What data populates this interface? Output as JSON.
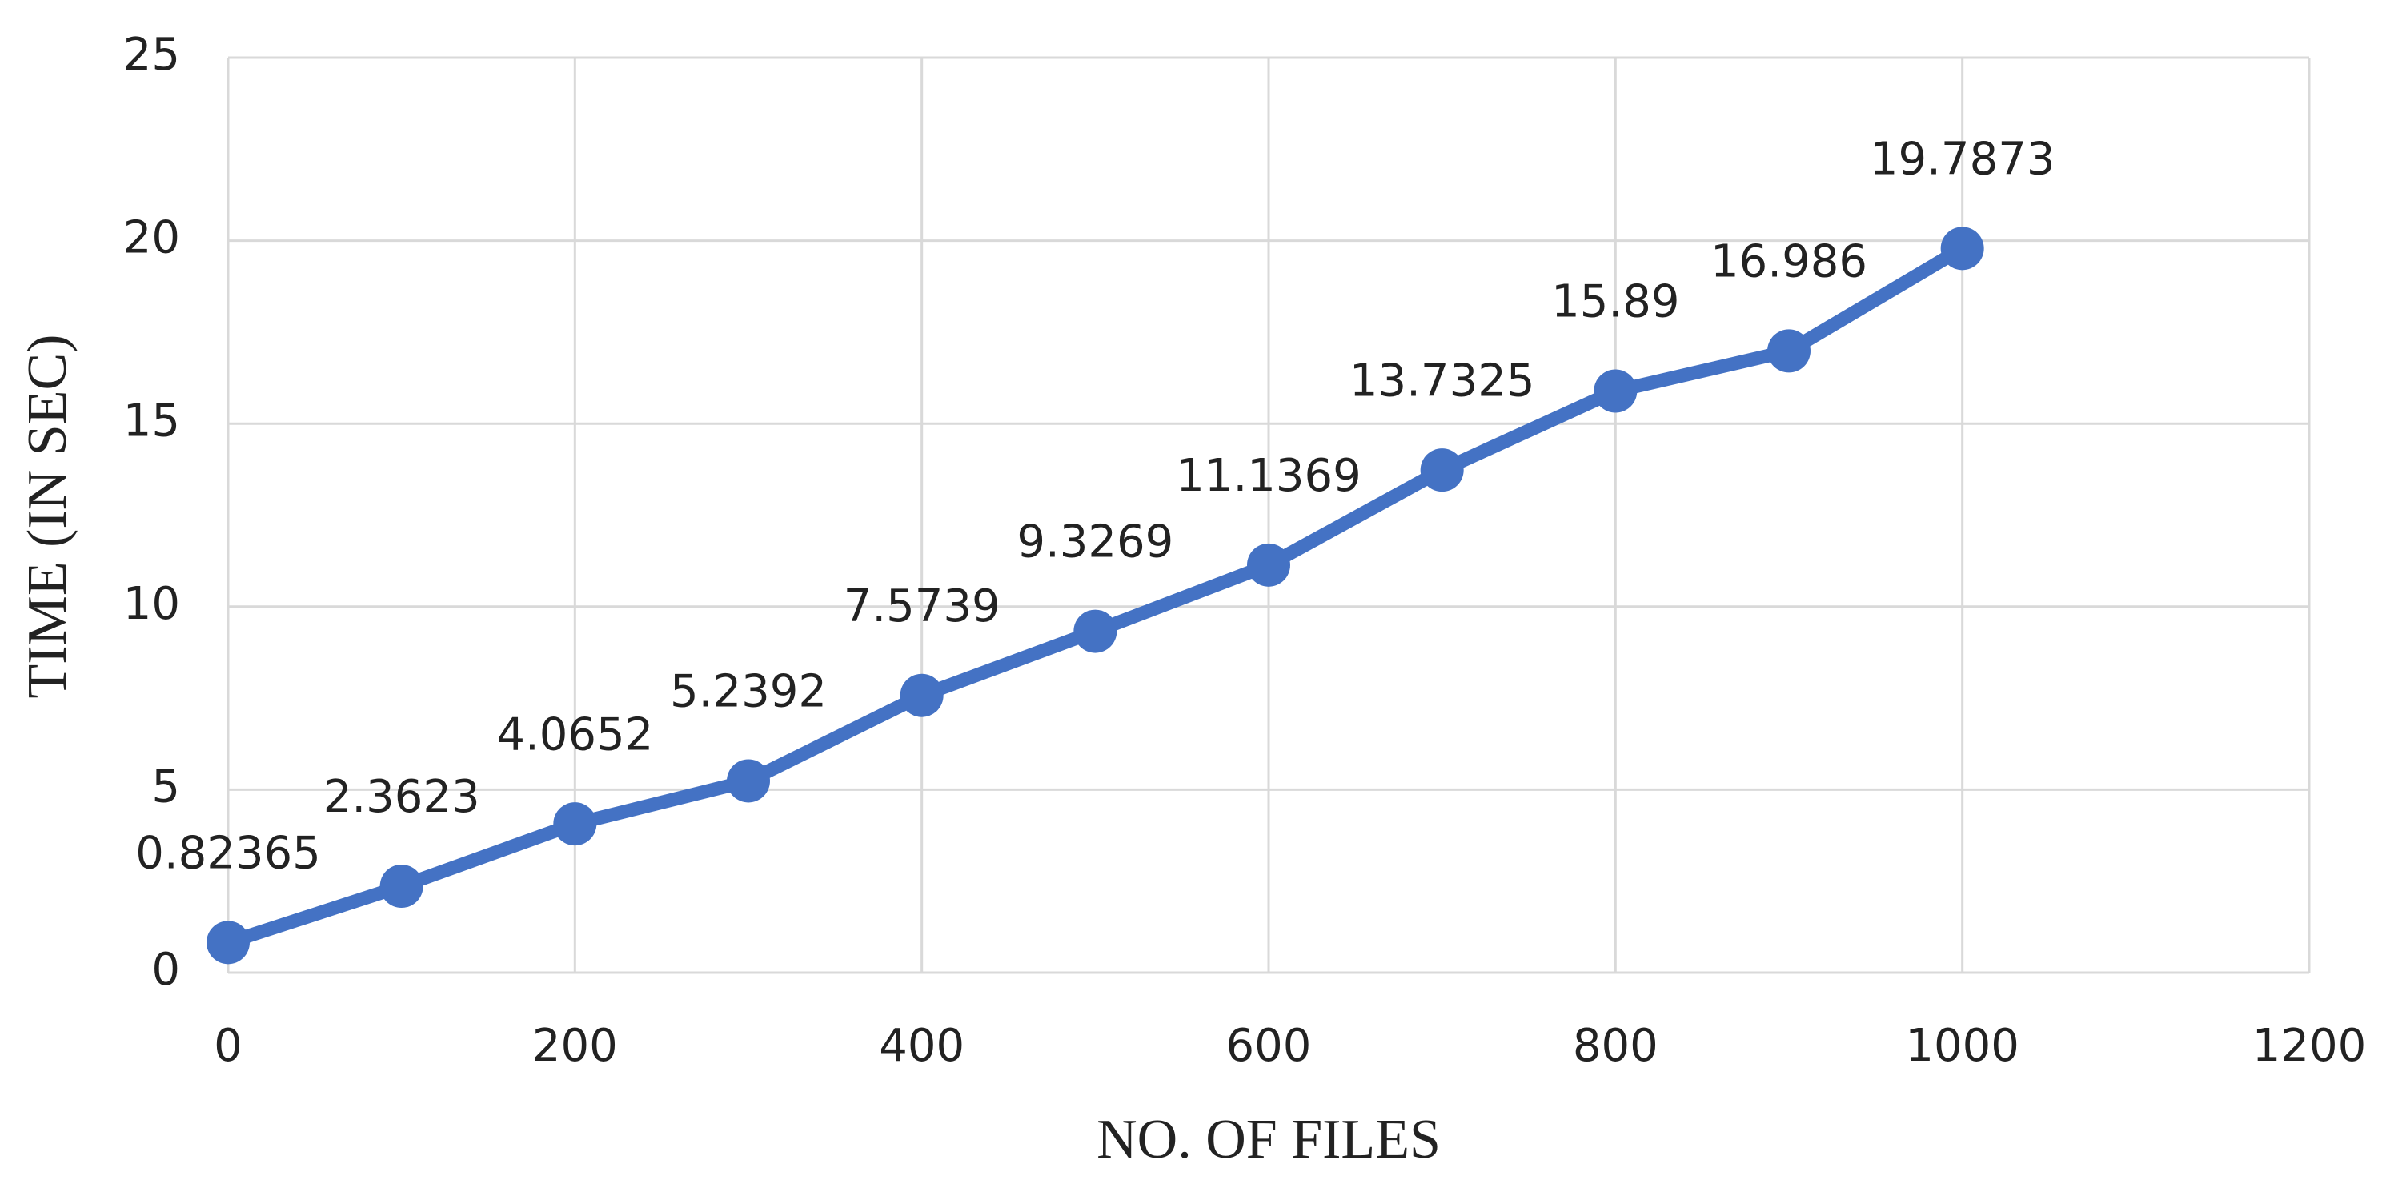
{
  "chart_data": {
    "type": "line",
    "x_label": "NO. OF FILES",
    "y_label": "TIME (IN SEC)",
    "x": [
      0,
      100,
      200,
      300,
      400,
      500,
      600,
      700,
      800,
      900,
      1000
    ],
    "series": [
      {
        "name": "TIME (IN SEC)",
        "color": "#4472c4",
        "values": [
          0.82365,
          2.3623,
          4.0652,
          5.2392,
          7.5739,
          9.3269,
          11.1369,
          13.7325,
          15.89,
          16.986,
          19.7873
        ]
      }
    ],
    "xlim": [
      0,
      1200
    ],
    "xticks": [
      0,
      200,
      400,
      600,
      800,
      1000,
      1200
    ],
    "ylim": [
      0,
      25
    ],
    "yticks": [
      0,
      5,
      10,
      15,
      20,
      25
    ],
    "grid": true
  }
}
